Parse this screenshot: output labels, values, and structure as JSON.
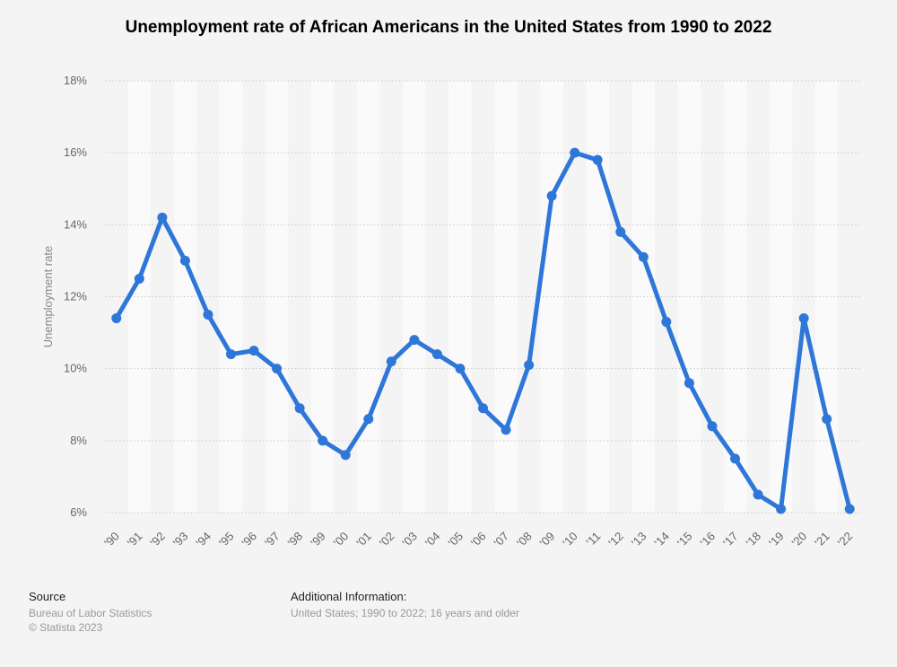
{
  "title": "Unemployment rate of African Americans in the United States from 1990 to 2022",
  "chart_data": {
    "type": "line",
    "title": "Unemployment rate of African Americans in the United States from 1990 to 2022",
    "xlabel": "",
    "ylabel": "Unemployment rate",
    "categories": [
      "'90",
      "'91",
      "'92",
      "'93",
      "'94",
      "'95",
      "'96",
      "'97",
      "'98",
      "'99",
      "'00",
      "'01",
      "'02",
      "'03",
      "'04",
      "'05",
      "'06",
      "'07",
      "'08",
      "'09",
      "'10",
      "'11",
      "'12",
      "'13",
      "'14",
      "'15",
      "'16",
      "'17",
      "'18",
      "'19",
      "'20",
      "'21",
      "'22"
    ],
    "values": [
      11.4,
      12.5,
      14.2,
      13.0,
      11.5,
      10.4,
      10.5,
      10.0,
      8.9,
      8.0,
      7.6,
      8.6,
      10.2,
      10.8,
      10.4,
      10.0,
      8.9,
      8.3,
      10.1,
      14.8,
      16.0,
      15.8,
      13.8,
      13.1,
      11.3,
      9.6,
      8.4,
      7.5,
      6.5,
      6.1,
      11.4,
      8.6,
      6.1
    ],
    "ylim": [
      6,
      18
    ],
    "yticks": [
      6,
      8,
      10,
      12,
      14,
      16,
      18
    ],
    "ytick_labels": [
      "6%",
      "8%",
      "10%",
      "12%",
      "14%",
      "16%",
      "18%"
    ],
    "grid": true,
    "line_color": "#2f76d9"
  },
  "footer": {
    "source_heading": "Source",
    "source_lines": [
      "Bureau of Labor Statistics",
      "© Statista 2023"
    ],
    "info_heading": "Additional Information:",
    "info_line": "United States; 1990 to 2022; 16 years and older"
  }
}
